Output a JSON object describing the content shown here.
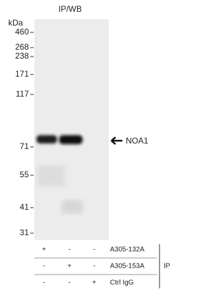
{
  "title": "IP/WB",
  "unit": "kDa",
  "markers": [
    "460",
    "268",
    "238",
    "171",
    "117",
    "71",
    "55",
    "41",
    "31"
  ],
  "target": "NOA1",
  "ip_table": {
    "rows": [
      {
        "cells": [
          "+",
          "-",
          "-"
        ],
        "label": "A305-132A"
      },
      {
        "cells": [
          "-",
          "+",
          "-"
        ],
        "label": "A305-153A"
      },
      {
        "cells": [
          "-",
          "-",
          "+"
        ],
        "label": "Ctrl IgG"
      }
    ],
    "group": "IP"
  }
}
